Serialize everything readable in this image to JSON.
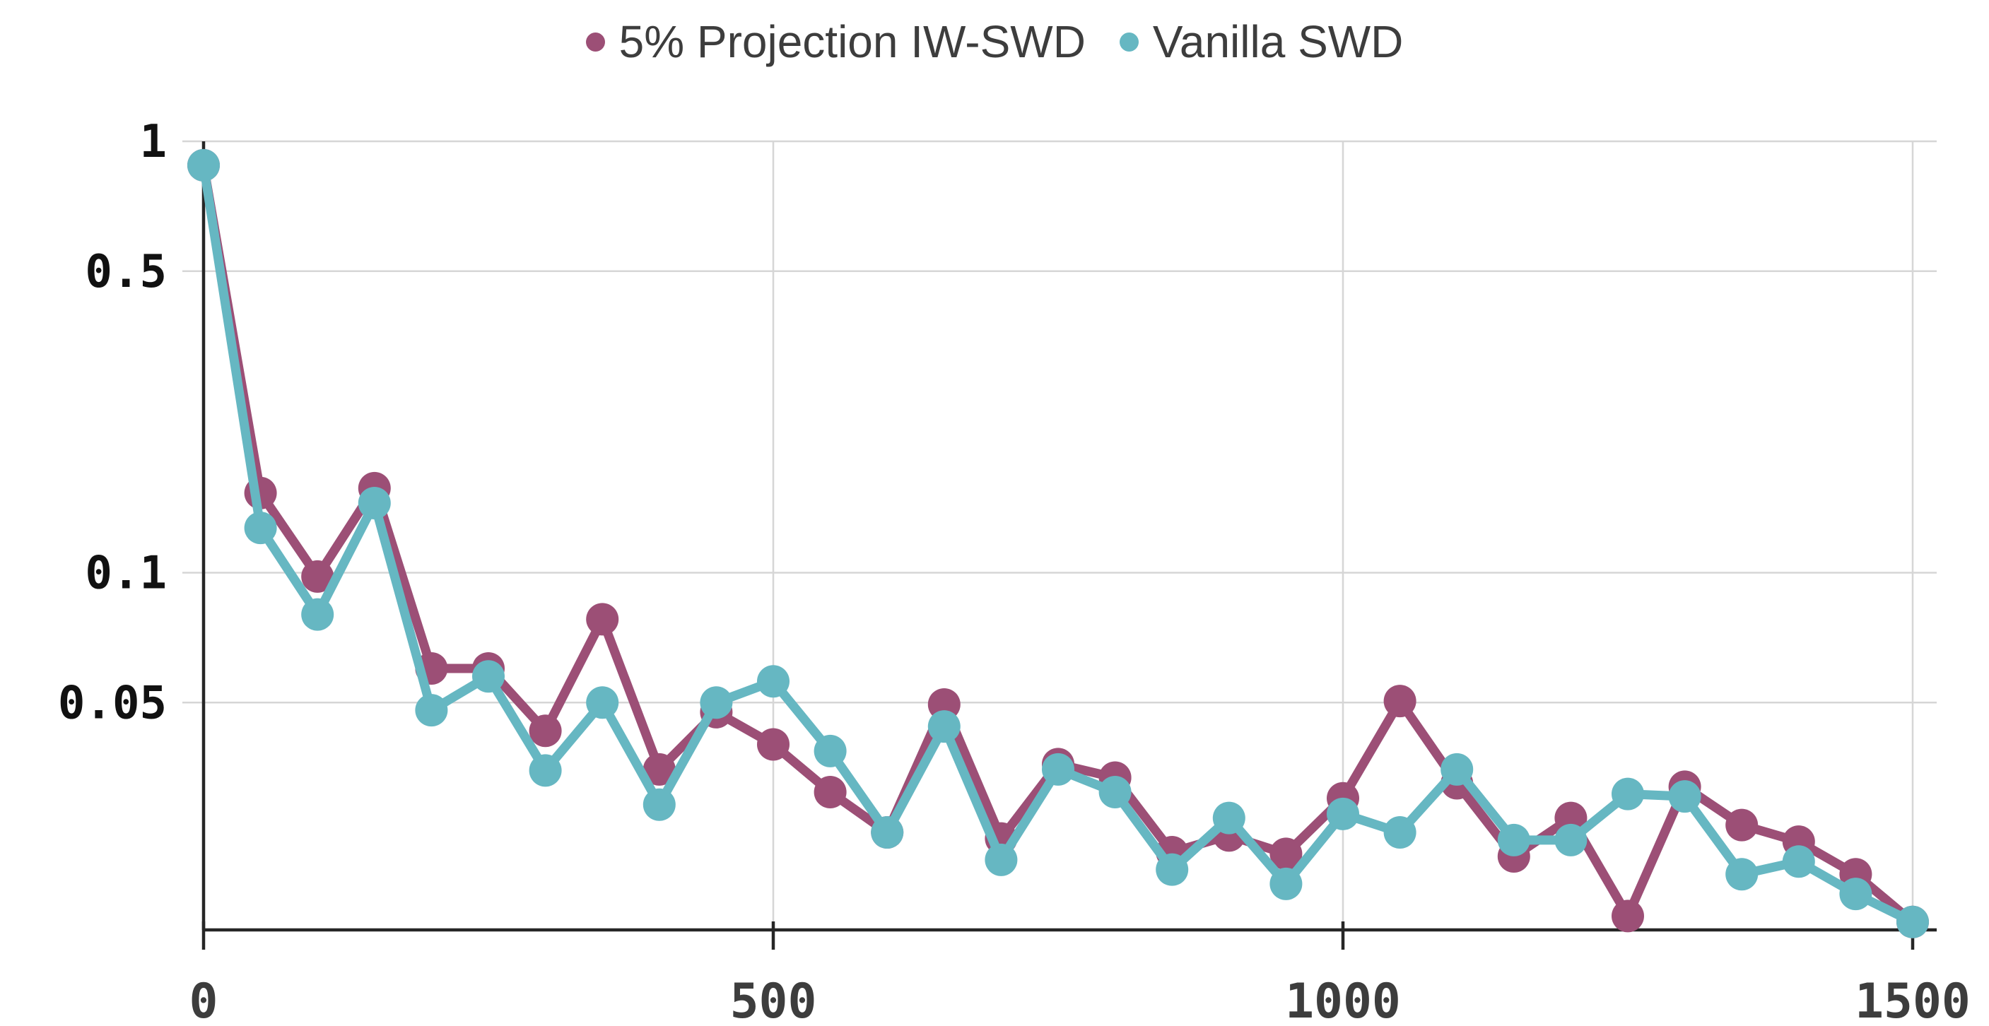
{
  "legend": {
    "items": [
      {
        "label": "5% Projection IW-SWD",
        "color": "#9c4f76"
      },
      {
        "label": "Vanilla SWD",
        "color": "#66b7c2"
      }
    ]
  },
  "colors": {
    "iw_swd": "#9c4f76",
    "vanilla_swd": "#66b7c2",
    "grid": "#d6d6d6",
    "axis": "#262626",
    "ytick_text": "#111111",
    "xtick_text": "#3d3d3d",
    "legend_text": "#3d3d3d",
    "background": "#ffffff"
  },
  "chart_data": {
    "type": "line",
    "title": "",
    "xlabel": "",
    "ylabel": "",
    "x": [
      0,
      50,
      100,
      150,
      200,
      250,
      300,
      350,
      400,
      450,
      500,
      550,
      600,
      650,
      700,
      750,
      800,
      850,
      900,
      950,
      1000,
      1050,
      1100,
      1150,
      1200,
      1250,
      1300,
      1350,
      1400,
      1450,
      1500
    ],
    "series": [
      {
        "name": "5% Projection IW-SWD",
        "color": "#9c4f76",
        "values": [
          0.88,
          0.153,
          0.098,
          0.157,
          0.06,
          0.06,
          0.043,
          0.078,
          0.035,
          0.0475,
          0.04,
          0.031,
          0.025,
          0.0495,
          0.0242,
          0.036,
          0.0335,
          0.0225,
          0.0246,
          0.0223,
          0.03,
          0.0504,
          0.0325,
          0.022,
          0.027,
          0.016,
          0.0319,
          0.026,
          0.0238,
          0.02,
          0.0155
        ]
      },
      {
        "name": "Vanilla SWD",
        "color": "#66b7c2",
        "values": [
          0.88,
          0.127,
          0.08,
          0.145,
          0.048,
          0.0575,
          0.0348,
          0.05,
          0.029,
          0.05,
          0.056,
          0.0386,
          0.025,
          0.044,
          0.0216,
          0.035,
          0.031,
          0.0205,
          0.027,
          0.019,
          0.0276,
          0.025,
          0.035,
          0.024,
          0.024,
          0.0307,
          0.0303,
          0.02,
          0.0214,
          0.018,
          0.0155
        ]
      }
    ],
    "yaxis": {
      "scale": "log",
      "min": 0.0148,
      "max": 1.0
    },
    "xaxis": {
      "min": 0,
      "max": 1500
    },
    "yticks": [
      1,
      0.5,
      0.1,
      0.05
    ],
    "ytick_labels": [
      "1",
      "0.5",
      "0.1",
      "0.05"
    ],
    "xticks": [
      0,
      500,
      1000,
      1500
    ],
    "xtick_labels": [
      "0",
      "500",
      "1000",
      "1500"
    ],
    "grid": true,
    "legend_position": "top-center",
    "marker_radius": 23,
    "line_width": 13
  }
}
